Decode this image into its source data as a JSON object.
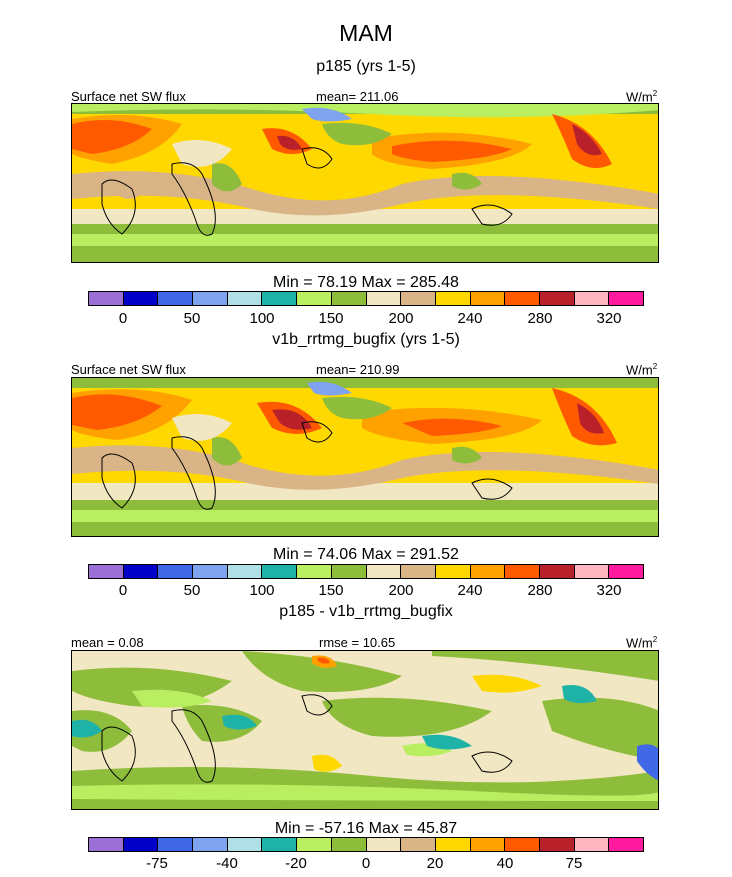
{
  "title": "MAM",
  "palette": [
    "#9b6fd6",
    "#0000c8",
    "#3f67e6",
    "#7fa3ef",
    "#b0e0e6",
    "#1fb2a6",
    "#b8ee60",
    "#8ebd3c",
    "#f2e7c3",
    "#d8b487",
    "#ffd800",
    "#ffa200",
    "#ff5a00",
    "#b8202a",
    "#ffb6c1",
    "#ff1a9e"
  ],
  "panels": [
    {
      "title": "p185 (yrs 1-5)",
      "left_label": "Surface net SW flux",
      "center_label": "mean= 211.06",
      "units": "W/m",
      "units_sup": "2",
      "stats": "Min =  78.19 Max = 285.48",
      "ticks": [
        "0",
        "50",
        "100",
        "150",
        "200",
        "240",
        "280",
        "320"
      ]
    },
    {
      "title": "v1b_rrtmg_bugfix (yrs 1-5)",
      "left_label": "Surface net SW flux",
      "center_label": "mean= 210.99",
      "units": "W/m",
      "units_sup": "2",
      "stats": "Min =  74.06 Max = 291.52",
      "ticks": [
        "0",
        "50",
        "100",
        "150",
        "200",
        "240",
        "280",
        "320"
      ]
    },
    {
      "title": "p185 - v1b_rrtmg_bugfix",
      "left_label": "mean =   0.08",
      "center_label": "rmse =  10.65",
      "units": "W/m",
      "units_sup": "2",
      "stats": "Min = -57.16 Max =  45.87",
      "ticks": [
        "-75",
        "-40",
        "-20",
        "0",
        "20",
        "40",
        "75"
      ]
    }
  ]
}
